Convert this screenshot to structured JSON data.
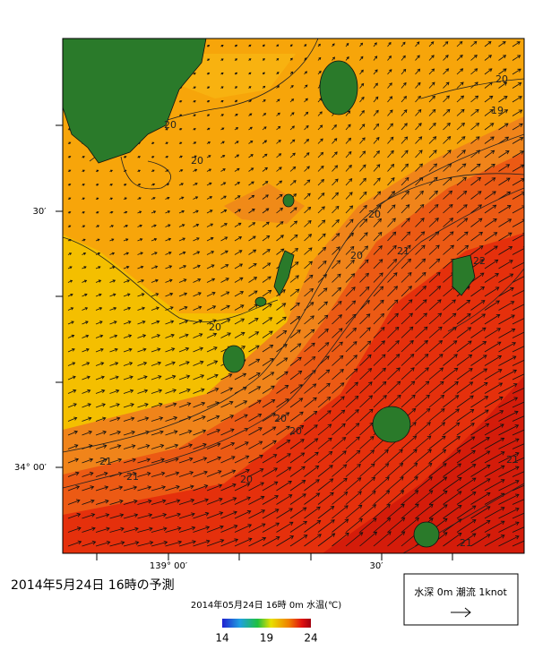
{
  "map": {
    "lat_labels": [
      "30′",
      "34° 00′"
    ],
    "lon_labels": [
      "139° 00′",
      "30′"
    ],
    "contour_labels": [
      20,
      20,
      20,
      19,
      20,
      20,
      21,
      22,
      20,
      20,
      21,
      20,
      21,
      21,
      20,
      21
    ]
  },
  "caption": "2014年5月24日  16時の予測",
  "colorbar": {
    "title": "2014年05月24日 16時 0m 水温(℃)",
    "range": [
      14,
      24
    ],
    "ticks": [
      14,
      19,
      24
    ]
  },
  "legend": {
    "text": "水深 0m 潮流 1knot"
  }
}
